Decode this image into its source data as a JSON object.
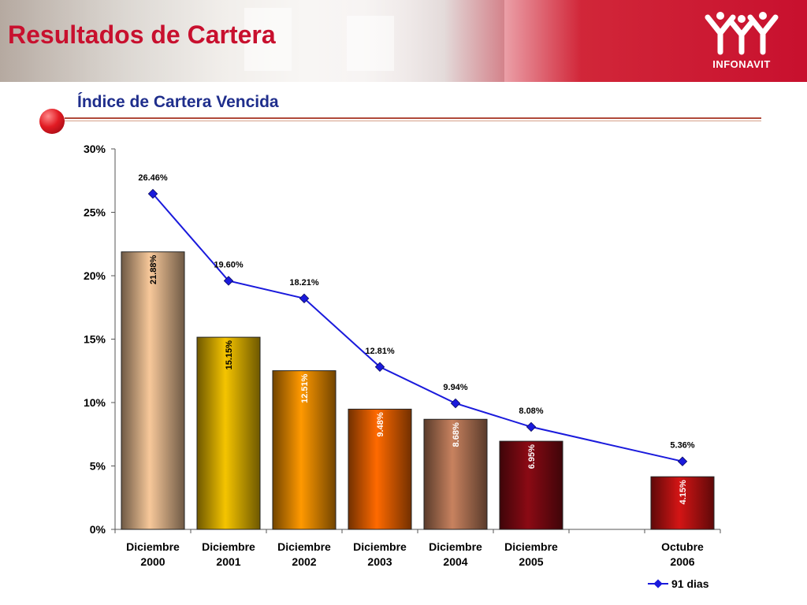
{
  "header": {
    "title": "Resultados de Cartera",
    "logo_text": "INFONAVIT",
    "brand_color": "#c8102e"
  },
  "subtitle": "Índice de Cartera Vencida",
  "chart_data": {
    "type": "bar",
    "categories": [
      [
        "Diciembre",
        "2000"
      ],
      [
        "Diciembre",
        "2001"
      ],
      [
        "Diciembre",
        "2002"
      ],
      [
        "Diciembre",
        "2003"
      ],
      [
        "Diciembre",
        "2004"
      ],
      [
        "Diciembre",
        "2005"
      ],
      [
        "",
        ""
      ],
      [
        "Octubre",
        "2006"
      ]
    ],
    "bar_series": {
      "values": [
        21.88,
        15.15,
        12.51,
        9.48,
        8.68,
        6.95,
        null,
        4.15
      ],
      "labels": [
        "21.88%",
        "15.15%",
        "12.51%",
        "9.48%",
        "8.68%",
        "6.95%",
        "",
        "4.15%"
      ],
      "colors": [
        "#f7c89a",
        "#f5c400",
        "#ff9900",
        "#ff6a00",
        "#c8825f",
        "#8b0a14",
        "",
        "#d41515"
      ]
    },
    "line_series": {
      "name": "91 dias",
      "values": [
        26.46,
        19.6,
        18.21,
        12.81,
        9.94,
        8.08,
        null,
        5.36
      ],
      "labels": [
        "26.46%",
        "19.60%",
        "18.21%",
        "12.81%",
        "9.94%",
        "8.08%",
        "",
        "5.36%"
      ],
      "color": "#1a1adc"
    },
    "y_ticks": [
      "0%",
      "5%",
      "10%",
      "15%",
      "20%",
      "25%",
      "30%"
    ],
    "ylim": [
      0,
      30
    ],
    "grid": false,
    "legend_position": "bottom-right"
  }
}
